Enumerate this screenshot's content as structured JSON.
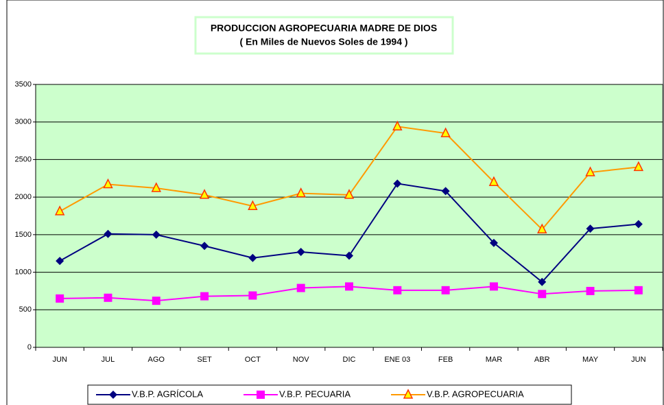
{
  "chart_data": {
    "type": "line",
    "title": "PRODUCCION AGROPECUARIA MADRE DE DIOS",
    "subtitle": "( En Miles de Nuevos Soles de 1994 )",
    "categories": [
      "JUN",
      "JUL",
      "AGO",
      "SET",
      "OCT",
      "NOV",
      "DIC",
      "ENE 03",
      "FEB",
      "MAR",
      "ABR",
      "MAY",
      "JUN"
    ],
    "series": [
      {
        "name": "V.B.P. AGRÍCOLA",
        "color": "#000080",
        "marker": "diamond",
        "values": [
          1150,
          1510,
          1500,
          1350,
          1190,
          1270,
          1220,
          2180,
          2080,
          1390,
          870,
          1580,
          1640
        ]
      },
      {
        "name": "V.B.P. PECUARIA",
        "color": "#ff00ff",
        "marker": "square",
        "values": [
          650,
          660,
          620,
          680,
          690,
          790,
          810,
          760,
          760,
          810,
          710,
          750,
          760
        ]
      },
      {
        "name": "V.B.P. AGROPECUARIA",
        "color": "#ff9900",
        "marker": "triangle",
        "values": [
          1810,
          2170,
          2120,
          2030,
          1880,
          2050,
          2030,
          2940,
          2850,
          2200,
          1570,
          2330,
          2400
        ]
      }
    ],
    "ylim": [
      0,
      3500
    ],
    "yticks": [
      0,
      500,
      1000,
      1500,
      2000,
      2500,
      3000,
      3500
    ],
    "grid": true,
    "legend": "bottom",
    "plot_background": "#ccffcc"
  }
}
